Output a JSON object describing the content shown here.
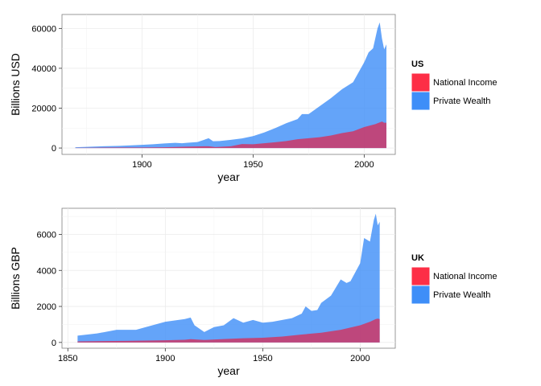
{
  "chart_data": [
    {
      "type": "area",
      "stacked": false,
      "ylabel": "Billions USD",
      "xlabel": "year",
      "xlim": [
        1864,
        2014
      ],
      "ylim": [
        -3200,
        67000
      ],
      "xticks": [
        1900,
        1950,
        2000
      ],
      "yticks": [
        0,
        20000,
        40000,
        60000
      ],
      "ytick_labels": [
        "0",
        "20000",
        "40000",
        "60000"
      ],
      "grid": true,
      "legend": {
        "title": "US",
        "placement": "right"
      },
      "series": [
        {
          "name": "Private Wealth",
          "color": "#3d8df7",
          "x": [
            1870,
            1880,
            1890,
            1900,
            1905,
            1910,
            1915,
            1918,
            1920,
            1925,
            1930,
            1932,
            1935,
            1940,
            1945,
            1950,
            1955,
            1960,
            1965,
            1970,
            1972,
            1975,
            1980,
            1985,
            1990,
            1995,
            2000,
            2002,
            2004,
            2006,
            2007,
            2008,
            2009,
            2010
          ],
          "y": [
            400,
            800,
            1100,
            1600,
            1900,
            2300,
            2600,
            2400,
            2600,
            3000,
            4900,
            3400,
            3500,
            4100,
            4800,
            6000,
            7800,
            10000,
            12500,
            14500,
            17000,
            17000,
            21000,
            25000,
            29500,
            33000,
            43000,
            48000,
            50000,
            60000,
            63000,
            55000,
            49500,
            52000
          ]
        },
        {
          "name": "National Income",
          "color": "#d4305d",
          "x": [
            1870,
            1880,
            1890,
            1900,
            1910,
            1920,
            1930,
            1933,
            1940,
            1945,
            1950,
            1955,
            1960,
            1965,
            1970,
            1975,
            1980,
            1985,
            1990,
            1995,
            2000,
            2005,
            2008,
            2009,
            2010
          ],
          "y": [
            100,
            200,
            300,
            300,
            400,
            700,
            900,
            500,
            900,
            2000,
            1900,
            2400,
            2900,
            3500,
            4400,
            4900,
            5400,
            6300,
            7500,
            8400,
            10500,
            12000,
            13300,
            12700,
            12700
          ]
        }
      ]
    },
    {
      "type": "area",
      "stacked": false,
      "ylabel": "Billions GBP",
      "xlabel": "year",
      "xlim": [
        1847,
        2018
      ],
      "ylim": [
        -320,
        7450
      ],
      "xticks": [
        1850,
        1900,
        1950,
        2000
      ],
      "yticks": [
        0,
        2000,
        4000,
        6000
      ],
      "ytick_labels": [
        "0",
        "2000",
        "4000",
        "6000"
      ],
      "grid": true,
      "legend": {
        "title": "UK",
        "placement": "right"
      },
      "series": [
        {
          "name": "Private Wealth",
          "color": "#3d8df7",
          "x": [
            1855,
            1865,
            1875,
            1885,
            1890,
            1900,
            1910,
            1913,
            1915,
            1920,
            1925,
            1930,
            1935,
            1940,
            1945,
            1950,
            1955,
            1960,
            1965,
            1970,
            1972,
            1975,
            1978,
            1980,
            1985,
            1990,
            1993,
            1995,
            2000,
            2002,
            2005,
            2007,
            2008,
            2009,
            2010
          ],
          "y": [
            380,
            500,
            700,
            700,
            850,
            1150,
            1300,
            1380,
            950,
            580,
            850,
            950,
            1350,
            1100,
            1250,
            1100,
            1150,
            1250,
            1350,
            1600,
            2000,
            1750,
            1800,
            2200,
            2600,
            3500,
            3300,
            3400,
            4400,
            5800,
            5600,
            6800,
            7150,
            6500,
            6700
          ]
        },
        {
          "name": "National Income",
          "color": "#d4305d",
          "x": [
            1855,
            1880,
            1900,
            1910,
            1913,
            1920,
            1930,
            1940,
            1950,
            1960,
            1970,
            1980,
            1990,
            2000,
            2005,
            2008,
            2009,
            2010
          ],
          "y": [
            60,
            90,
            120,
            150,
            180,
            140,
            190,
            230,
            260,
            330,
            440,
            540,
            700,
            950,
            1150,
            1300,
            1320,
            1300
          ]
        }
      ]
    }
  ]
}
